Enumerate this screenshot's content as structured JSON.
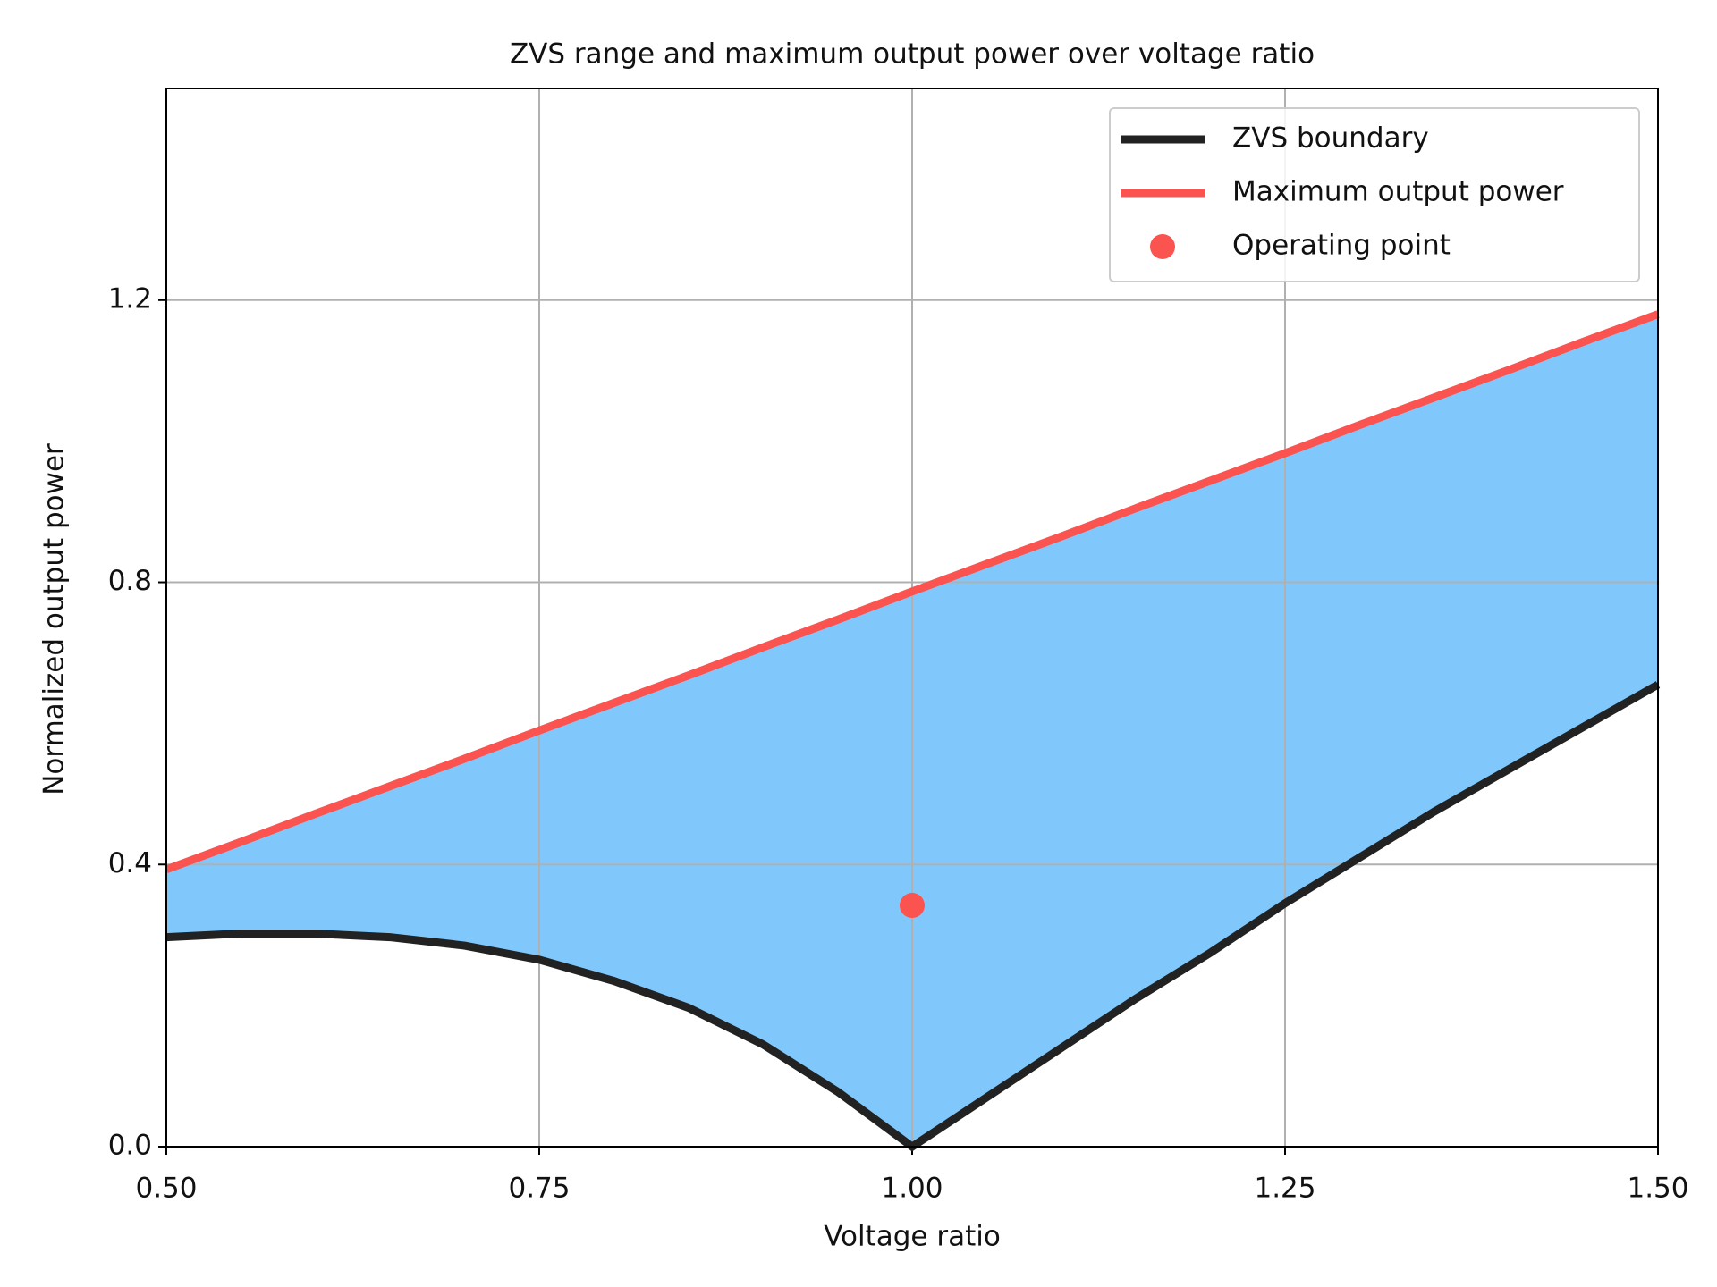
{
  "chart_data": {
    "type": "line",
    "title": "ZVS range and maximum output power over voltage ratio",
    "x_label": "Voltage ratio",
    "y_label": "Normalized output power",
    "x": [
      0.5,
      0.55,
      0.6,
      0.65,
      0.7,
      0.75,
      0.8,
      0.85,
      0.9,
      0.95,
      1.0,
      1.05,
      1.1,
      1.15,
      1.2,
      1.25,
      1.3,
      1.35,
      1.4,
      1.45,
      1.5
    ],
    "series": [
      {
        "name": "ZVS boundary",
        "color": "#222222",
        "values": [
          0.297,
          0.302,
          0.302,
          0.297,
          0.285,
          0.265,
          0.235,
          0.197,
          0.145,
          0.078,
          0.0,
          0.07,
          0.14,
          0.21,
          0.275,
          0.345,
          0.41,
          0.475,
          0.535,
          0.595,
          0.655
        ]
      },
      {
        "name": "Maximum output power",
        "color": "#fa5350",
        "values": [
          0.393,
          0.432,
          0.472,
          0.511,
          0.55,
          0.59,
          0.629,
          0.668,
          0.708,
          0.747,
          0.787,
          0.826,
          0.865,
          0.905,
          0.944,
          0.983,
          1.023,
          1.062,
          1.101,
          1.141,
          1.18
        ]
      },
      {
        "name": "Operating point",
        "color": "#fa5350",
        "marker": "o",
        "x": [
          1.0
        ],
        "values": [
          0.342
        ]
      }
    ],
    "fill_between": {
      "color": "#80c8fc"
    },
    "xlim": [
      0.5,
      1.5
    ],
    "ylim": [
      0,
      1.5
    ],
    "xticks": [
      {
        "value": 0.5,
        "label": "0.50"
      },
      {
        "value": 0.75,
        "label": "0.75"
      },
      {
        "value": 1.0,
        "label": "1.00"
      },
      {
        "value": 1.25,
        "label": "1.25"
      },
      {
        "value": 1.5,
        "label": "1.50"
      }
    ],
    "yticks": [
      {
        "value": 0,
        "label": "0.0"
      },
      0.4,
      0.8,
      1.2
    ],
    "grid": true,
    "legend": "upper right"
  }
}
